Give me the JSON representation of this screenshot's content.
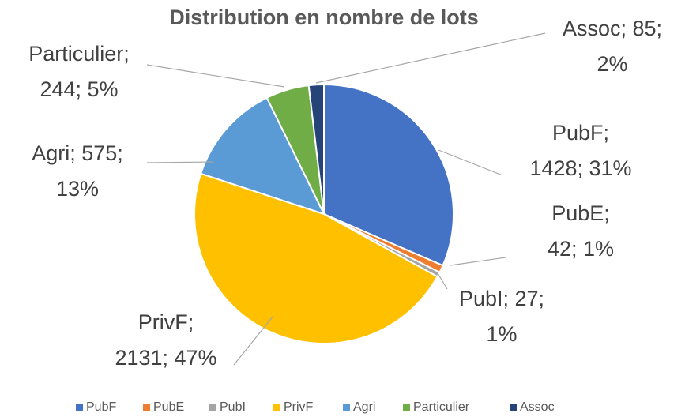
{
  "chart_data": {
    "type": "pie",
    "title": "Distribution en nombre de lots",
    "categories": [
      "PubF",
      "PubE",
      "PubI",
      "PrivF",
      "Agri",
      "Particulier",
      "Assoc"
    ],
    "values": [
      1428,
      42,
      27,
      2131,
      575,
      244,
      85
    ],
    "value_labels": [
      [
        "PubF;",
        "1428; 31%"
      ],
      [
        "PubE;",
        "42; 1%"
      ],
      [
        "PubI; 27;",
        "1%"
      ],
      [
        "PrivF;",
        "2131; 47%"
      ],
      [
        "Agri; 575;",
        "13%"
      ],
      [
        "Particulier;",
        "244; 5%"
      ],
      [
        "Assoc; 85;",
        "2%"
      ]
    ],
    "colors": [
      "#4472c4",
      "#ed7d31",
      "#a5a5a5",
      "#ffc000",
      "#5b9bd5",
      "#70ad47",
      "#264478"
    ],
    "legend": "bottom"
  }
}
